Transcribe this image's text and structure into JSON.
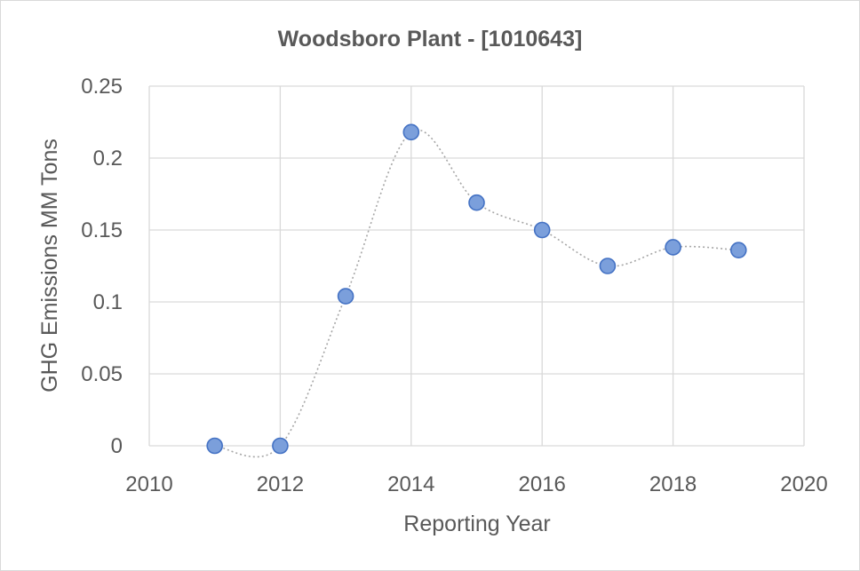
{
  "chart_data": {
    "type": "scatter",
    "title": "Woodsboro Plant - [1010643]",
    "xlabel": "Reporting Year",
    "ylabel": "GHG Emissions MM Tons",
    "xlim": [
      2010,
      2020
    ],
    "ylim": [
      0,
      0.25
    ],
    "x_ticks": [
      "2010",
      "2012",
      "2014",
      "2016",
      "2018",
      "2020"
    ],
    "y_ticks": [
      "0",
      "0.05",
      "0.1",
      "0.15",
      "0.2",
      "0.25"
    ],
    "grid": true,
    "line_style": "smoothed dotted",
    "colors": {
      "marker_fill": "#7b9fdb",
      "marker_stroke": "#4472c4",
      "line": "#a6a6a6",
      "grid": "#d9d9d9",
      "text": "#595959"
    },
    "series": [
      {
        "x": [
          2011,
          2012,
          2013,
          2014,
          2015,
          2016,
          2017,
          2018,
          2019
        ],
        "y": [
          0,
          0,
          0.104,
          0.218,
          0.169,
          0.15,
          0.125,
          0.138,
          0.136
        ]
      }
    ]
  }
}
